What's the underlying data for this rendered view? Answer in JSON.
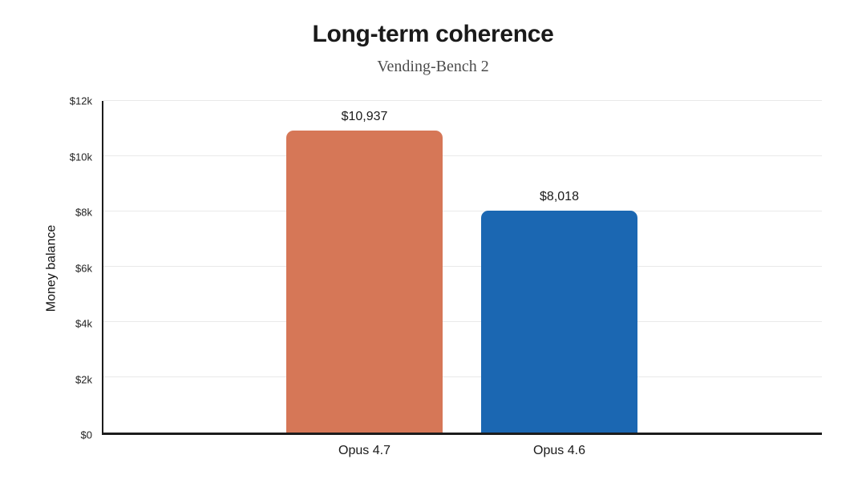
{
  "title": "Long-term coherence",
  "subtitle": "Vending-Bench 2",
  "chart_data": {
    "type": "bar",
    "title": "Long-term coherence",
    "subtitle": "Vending-Bench 2",
    "categories": [
      "Opus 4.7",
      "Opus 4.6"
    ],
    "values": [
      10937,
      8018
    ],
    "value_labels": [
      "$10,937",
      "$8,018"
    ],
    "bar_colors": [
      "#D67757",
      "#1B67B2"
    ],
    "xlabel": "",
    "ylabel": "Money balance",
    "ylim": [
      0,
      12000
    ],
    "ytick_labels": [
      "$0",
      "$2k",
      "$4k",
      "$6k",
      "$8k",
      "$10k",
      "$12k"
    ],
    "grid": true,
    "legend": false
  },
  "colors": {
    "background": "#ffffff",
    "title_text": "#1a1a1a",
    "subtitle_text": "#4d4d4d",
    "axis": "#1c1c1c",
    "gridline": "#e9e9e9",
    "bar_opus_47": "#D67757",
    "bar_opus_46": "#1B67B2"
  }
}
